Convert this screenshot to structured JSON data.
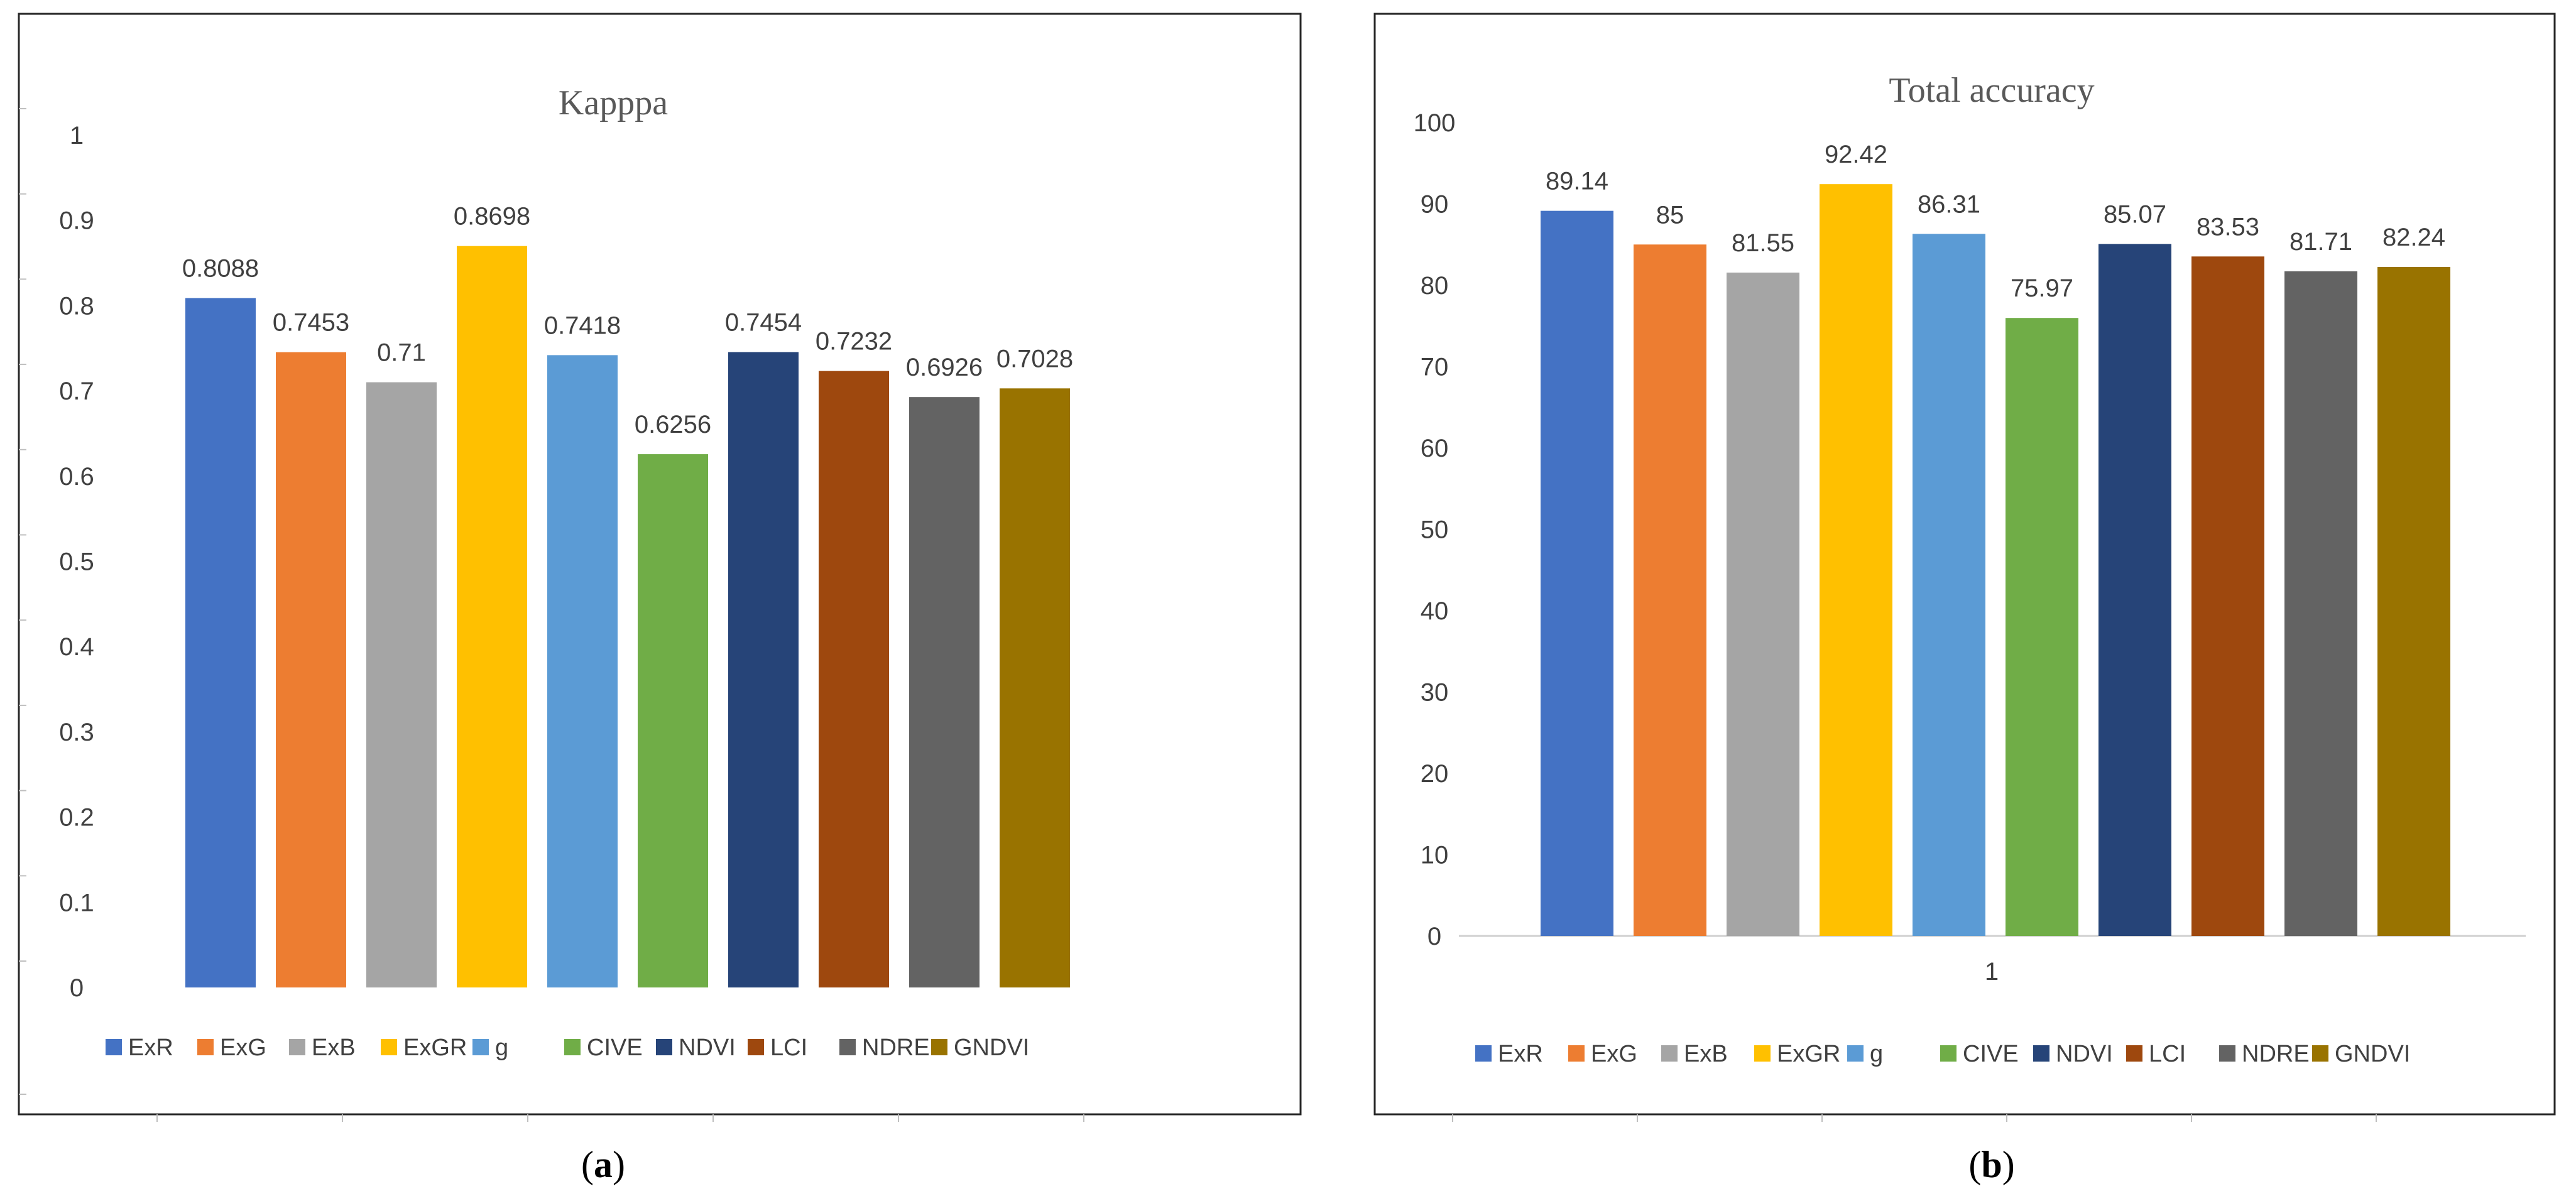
{
  "chart_data": [
    {
      "type": "bar",
      "panel": "a",
      "title": "Kapppa",
      "caption_letter": "a",
      "categories": [
        "ExR",
        "ExG",
        "ExB",
        "ExGR",
        "g",
        "CIVE",
        "NDVI",
        "LCI",
        "NDRE",
        "GNDVI"
      ],
      "values": [
        0.8088,
        0.7453,
        0.71,
        0.8698,
        0.7418,
        0.6256,
        0.7454,
        0.7232,
        0.6926,
        0.7028
      ],
      "data_labels": [
        "0.8088",
        "0.7453",
        "0.71",
        "0.8698",
        "0.7418",
        "0.6256",
        "0.7454",
        "0.7232",
        "0.6926",
        "0.7028"
      ],
      "colors": [
        "#4472C4",
        "#ED7D31",
        "#A5A5A5",
        "#FFC000",
        "#5B9BD5",
        "#70AD47",
        "#264478",
        "#9E480E",
        "#636363",
        "#997300"
      ],
      "ylim": [
        0,
        1
      ],
      "yticks": [
        "0",
        "0.1",
        "0.2",
        "0.3",
        "0.4",
        "0.5",
        "0.6",
        "0.7",
        "0.8",
        "0.9",
        "1"
      ],
      "xlabel": "",
      "ylabel": "",
      "x_tick_label": "",
      "legend": "bottom",
      "grid": false
    },
    {
      "type": "bar",
      "panel": "b",
      "title": "Total accuracy",
      "caption_letter": "b",
      "categories": [
        "ExR",
        "ExG",
        "ExB",
        "ExGR",
        "g",
        "CIVE",
        "NDVI",
        "LCI",
        "NDRE",
        "GNDVI"
      ],
      "values": [
        89.14,
        85,
        81.55,
        92.42,
        86.31,
        75.97,
        85.07,
        83.53,
        81.71,
        82.24
      ],
      "data_labels": [
        "89.14",
        "85",
        "81.55",
        "92.42",
        "86.31",
        "75.97",
        "85.07",
        "83.53",
        "81.71",
        "82.24"
      ],
      "colors": [
        "#4472C4",
        "#ED7D31",
        "#A5A5A5",
        "#FFC000",
        "#5B9BD5",
        "#70AD47",
        "#264478",
        "#9E480E",
        "#636363",
        "#997300"
      ],
      "ylim": [
        0,
        100
      ],
      "yticks": [
        "0",
        "10",
        "20",
        "30",
        "40",
        "50",
        "60",
        "70",
        "80",
        "90",
        "100"
      ],
      "xlabel": "",
      "ylabel": "",
      "x_tick_label": "1",
      "legend": "bottom",
      "grid": false
    }
  ]
}
